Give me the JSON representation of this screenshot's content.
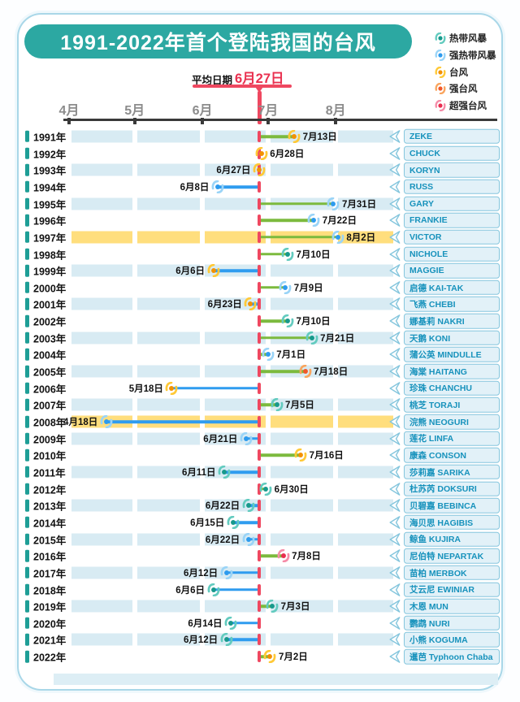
{
  "title": "1991-2022年首个登陆我国的台风",
  "average": {
    "prefix": "平均日期",
    "value": "6月27日",
    "month": 6,
    "day": 27
  },
  "legend": [
    {
      "key": "tropical_storm",
      "label": "热带风暴"
    },
    {
      "key": "severe_tropical_storm",
      "label": "强热带风暴"
    },
    {
      "key": "typhoon",
      "label": "台风"
    },
    {
      "key": "severe_typhoon",
      "label": "强台风"
    },
    {
      "key": "super_typhoon",
      "label": "超强台风"
    }
  ],
  "colors": {
    "title_pill": "#2ca8a2",
    "card_border": "#a9d7e8",
    "stripe": "#d8ebf3",
    "highlight": "#ffde7d",
    "line_after": "#7cba3e",
    "line_before": "#2f9cef",
    "average_red": "#ef4860",
    "badge_fill": "#e2f1f8",
    "badge_border": "#85c6dd",
    "badge_text": "#1792bc",
    "categories": {
      "tropical_storm": {
        "arm": "#63cbbf",
        "center": "#17998c"
      },
      "severe_tropical_storm": {
        "arm": "#9ad4f7",
        "center": "#2d9bee"
      },
      "typhoon": {
        "arm": "#ffc937",
        "center": "#f29100"
      },
      "severe_typhoon": {
        "arm": "#f9a55e",
        "center": "#f1582a"
      },
      "super_typhoon": {
        "arm": "#f58ca8",
        "center": "#e92d4f"
      }
    }
  },
  "chart_data": {
    "type": "scatter",
    "title": "1991-2022年首个登陆我国的台风",
    "x_ticks": [
      "4月",
      "5月",
      "6月",
      "7月",
      "8月"
    ],
    "x_range": "4月1日 – 8月31日",
    "y_axis": "年份 1991–2022",
    "average": {
      "label": "平均日期",
      "value": "6月27日"
    },
    "legend": [
      "热带风暴",
      "强热带风暴",
      "台风",
      "强台风",
      "超强台风"
    ],
    "points": [
      {
        "year": "1991年",
        "date": "7月13日",
        "month": 7,
        "day": 13,
        "name": "ZEKE",
        "category": "台风",
        "category_key": "typhoon",
        "highlight": false,
        "label_side": "right"
      },
      {
        "year": "1992年",
        "date": "6月28日",
        "month": 6,
        "day": 28,
        "name": "CHUCK",
        "category": "台风",
        "category_key": "typhoon",
        "highlight": false,
        "label_side": "right"
      },
      {
        "year": "1993年",
        "date": "6月27日",
        "month": 6,
        "day": 27,
        "name": "KORYN",
        "category": "台风",
        "category_key": "typhoon",
        "highlight": false,
        "label_side": "left"
      },
      {
        "year": "1994年",
        "date": "6月8日",
        "month": 6,
        "day": 8,
        "name": "RUSS",
        "category": "强热带风暴",
        "category_key": "severe_tropical_storm",
        "highlight": false,
        "label_side": "left"
      },
      {
        "year": "1995年",
        "date": "7月31日",
        "month": 7,
        "day": 31,
        "name": "GARY",
        "category": "强热带风暴",
        "category_key": "severe_tropical_storm",
        "highlight": false,
        "label_side": "right"
      },
      {
        "year": "1996年",
        "date": "7月22日",
        "month": 7,
        "day": 22,
        "name": "FRANKIE",
        "category": "强热带风暴",
        "category_key": "severe_tropical_storm",
        "highlight": false,
        "label_side": "right"
      },
      {
        "year": "1997年",
        "date": "8月2日",
        "month": 8,
        "day": 2,
        "name": "VICTOR",
        "category": "强热带风暴",
        "category_key": "severe_tropical_storm",
        "highlight": true,
        "label_side": "right"
      },
      {
        "year": "1998年",
        "date": "7月10日",
        "month": 7,
        "day": 10,
        "name": "NICHOLE",
        "category": "热带风暴",
        "category_key": "tropical_storm",
        "highlight": false,
        "label_side": "right"
      },
      {
        "year": "1999年",
        "date": "6月6日",
        "month": 6,
        "day": 6,
        "name": "MAGGIE",
        "category": "台风",
        "category_key": "typhoon",
        "highlight": false,
        "label_side": "left"
      },
      {
        "year": "2000年",
        "date": "7月9日",
        "month": 7,
        "day": 9,
        "name": "启德 KAI-TAK",
        "category": "强热带风暴",
        "category_key": "severe_tropical_storm",
        "highlight": false,
        "label_side": "right"
      },
      {
        "year": "2001年",
        "date": "6月23日",
        "month": 6,
        "day": 23,
        "name": "飞燕 CHEBI",
        "category": "台风",
        "category_key": "typhoon",
        "highlight": false,
        "label_side": "left"
      },
      {
        "year": "2002年",
        "date": "7月10日",
        "month": 7,
        "day": 10,
        "name": "娜基莉 NAKRI",
        "category": "热带风暴",
        "category_key": "tropical_storm",
        "highlight": false,
        "label_side": "right"
      },
      {
        "year": "2003年",
        "date": "7月21日",
        "month": 7,
        "day": 21,
        "name": "天鹅 KONI",
        "category": "热带风暴",
        "category_key": "tropical_storm",
        "highlight": false,
        "label_side": "right"
      },
      {
        "year": "2004年",
        "date": "7月1日",
        "month": 7,
        "day": 1,
        "name": "蒲公英 MINDULLE",
        "category": "强热带风暴",
        "category_key": "severe_tropical_storm",
        "highlight": false,
        "label_side": "right"
      },
      {
        "year": "2005年",
        "date": "7月18日",
        "month": 7,
        "day": 18,
        "name": "海棠 HAITANG",
        "category": "强台风",
        "category_key": "severe_typhoon",
        "highlight": false,
        "label_side": "right"
      },
      {
        "year": "2006年",
        "date": "5月18日",
        "month": 5,
        "day": 18,
        "name": "珍珠 CHANCHU",
        "category": "台风",
        "category_key": "typhoon",
        "highlight": false,
        "label_side": "left"
      },
      {
        "year": "2007年",
        "date": "7月5日",
        "month": 7,
        "day": 5,
        "name": "桃芝 TORAJI",
        "category": "热带风暴",
        "category_key": "tropical_storm",
        "highlight": false,
        "label_side": "right"
      },
      {
        "year": "2008年",
        "date": "4月18日",
        "month": 4,
        "day": 18,
        "name": "浣熊 NEOGURI",
        "category": "强热带风暴",
        "category_key": "severe_tropical_storm",
        "highlight": true,
        "label_side": "left"
      },
      {
        "year": "2009年",
        "date": "6月21日",
        "month": 6,
        "day": 21,
        "name": "莲花 LINFA",
        "category": "强热带风暴",
        "category_key": "severe_tropical_storm",
        "highlight": false,
        "label_side": "left"
      },
      {
        "year": "2010年",
        "date": "7月16日",
        "month": 7,
        "day": 16,
        "name": "康森 CONSON",
        "category": "台风",
        "category_key": "typhoon",
        "highlight": false,
        "label_side": "right"
      },
      {
        "year": "2011年",
        "date": "6月11日",
        "month": 6,
        "day": 11,
        "name": "莎莉嘉 SARIKA",
        "category": "热带风暴",
        "category_key": "tropical_storm",
        "highlight": false,
        "label_side": "left"
      },
      {
        "year": "2012年",
        "date": "6月30日",
        "month": 6,
        "day": 30,
        "name": "杜苏芮 DOKSURI",
        "category": "热带风暴",
        "category_key": "tropical_storm",
        "highlight": false,
        "label_side": "right"
      },
      {
        "year": "2013年",
        "date": "6月22日",
        "month": 6,
        "day": 22,
        "name": "贝碧嘉 BEBINCA",
        "category": "热带风暴",
        "category_key": "tropical_storm",
        "highlight": false,
        "label_side": "left"
      },
      {
        "year": "2014年",
        "date": "6月15日",
        "month": 6,
        "day": 15,
        "name": "海贝思 HAGIBIS",
        "category": "热带风暴",
        "category_key": "tropical_storm",
        "highlight": false,
        "label_side": "left"
      },
      {
        "year": "2015年",
        "date": "6月22日",
        "month": 6,
        "day": 22,
        "name": "鲸鱼 KUJIRA",
        "category": "强热带风暴",
        "category_key": "severe_tropical_storm",
        "highlight": false,
        "label_side": "left"
      },
      {
        "year": "2016年",
        "date": "7月8日",
        "month": 7,
        "day": 8,
        "name": "尼伯特 NEPARTAK",
        "category": "超强台风",
        "category_key": "super_typhoon",
        "highlight": false,
        "label_side": "right"
      },
      {
        "year": "2017年",
        "date": "6月12日",
        "month": 6,
        "day": 12,
        "name": "苗柏 MERBOK",
        "category": "强热带风暴",
        "category_key": "severe_tropical_storm",
        "highlight": false,
        "label_side": "left"
      },
      {
        "year": "2018年",
        "date": "6月6日",
        "month": 6,
        "day": 6,
        "name": "艾云尼 EWINIAR",
        "category": "热带风暴",
        "category_key": "tropical_storm",
        "highlight": false,
        "label_side": "left"
      },
      {
        "year": "2019年",
        "date": "7月3日",
        "month": 7,
        "day": 3,
        "name": "木恩 MUN",
        "category": "热带风暴",
        "category_key": "tropical_storm",
        "highlight": false,
        "label_side": "right"
      },
      {
        "year": "2020年",
        "date": "6月14日",
        "month": 6,
        "day": 14,
        "name": "鹦鹉 NURI",
        "category": "热带风暴",
        "category_key": "tropical_storm",
        "highlight": false,
        "label_side": "left"
      },
      {
        "year": "2021年",
        "date": "6月12日",
        "month": 6,
        "day": 12,
        "name": "小熊 KOGUMA",
        "category": "热带风暴",
        "category_key": "tropical_storm",
        "highlight": false,
        "label_side": "left"
      },
      {
        "year": "2022年",
        "date": "7月2日",
        "month": 7,
        "day": 2,
        "name": "暹芭 Typhoon Chaba",
        "category": "台风",
        "category_key": "typhoon",
        "highlight": false,
        "label_side": "right"
      }
    ]
  }
}
